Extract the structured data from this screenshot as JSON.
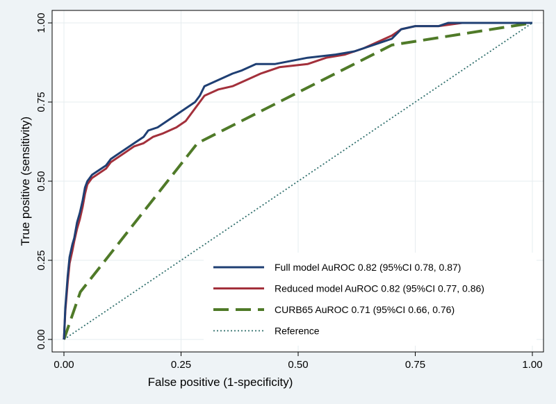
{
  "chart_data": {
    "type": "line",
    "title": "",
    "xlabel": "False positive (1-specificity)",
    "ylabel": "True positive (sensitivity)",
    "xlim": [
      0,
      1
    ],
    "ylim": [
      0,
      1
    ],
    "xticks": [
      "0.00",
      "0.25",
      "0.50",
      "0.75",
      "1.00"
    ],
    "yticks": [
      "0.00",
      "0.25",
      "0.50",
      "0.75",
      "1.00"
    ],
    "grid": true,
    "legend_position": "bottom-right",
    "series": [
      {
        "name": "Full model AuROC 0.82  (95%CI 0.78, 0.87)",
        "color": "#1f3f73",
        "style": "solid",
        "x": [
          0,
          0.003,
          0.008,
          0.012,
          0.018,
          0.022,
          0.028,
          0.034,
          0.04,
          0.045,
          0.05,
          0.06,
          0.07,
          0.09,
          0.1,
          0.11,
          0.13,
          0.15,
          0.17,
          0.18,
          0.2,
          0.22,
          0.24,
          0.26,
          0.28,
          0.29,
          0.3,
          0.33,
          0.36,
          0.38,
          0.41,
          0.45,
          0.52,
          0.58,
          0.62,
          0.66,
          0.7,
          0.72,
          0.75,
          0.8,
          0.82,
          1.0
        ],
        "y": [
          0,
          0.1,
          0.2,
          0.26,
          0.3,
          0.32,
          0.37,
          0.4,
          0.44,
          0.48,
          0.5,
          0.52,
          0.53,
          0.55,
          0.57,
          0.58,
          0.6,
          0.62,
          0.64,
          0.66,
          0.67,
          0.69,
          0.71,
          0.73,
          0.75,
          0.77,
          0.8,
          0.82,
          0.84,
          0.85,
          0.87,
          0.87,
          0.89,
          0.9,
          0.91,
          0.93,
          0.95,
          0.98,
          0.99,
          0.99,
          1.0,
          1.0
        ]
      },
      {
        "name": "Reduced model AuROC 0.82  (95%CI 0.77, 0.86)",
        "color": "#a3303b",
        "style": "solid",
        "x": [
          0,
          0.003,
          0.008,
          0.012,
          0.018,
          0.022,
          0.028,
          0.034,
          0.04,
          0.045,
          0.05,
          0.06,
          0.07,
          0.09,
          0.1,
          0.11,
          0.13,
          0.15,
          0.17,
          0.19,
          0.21,
          0.24,
          0.26,
          0.28,
          0.3,
          0.33,
          0.36,
          0.39,
          0.42,
          0.46,
          0.52,
          0.56,
          0.6,
          0.64,
          0.67,
          0.7,
          0.72,
          0.75,
          0.8,
          0.85,
          1.0
        ],
        "y": [
          0,
          0.09,
          0.18,
          0.24,
          0.28,
          0.31,
          0.35,
          0.38,
          0.42,
          0.46,
          0.49,
          0.51,
          0.52,
          0.54,
          0.56,
          0.57,
          0.59,
          0.61,
          0.62,
          0.64,
          0.65,
          0.67,
          0.69,
          0.73,
          0.77,
          0.79,
          0.8,
          0.82,
          0.84,
          0.86,
          0.87,
          0.89,
          0.9,
          0.92,
          0.94,
          0.96,
          0.98,
          0.99,
          0.99,
          1.0,
          1.0
        ]
      },
      {
        "name": "CURB65 AuROC 0.71 (95%CI 0.66, 0.76)",
        "color": "#4f7a28",
        "style": "dashed",
        "x": [
          0,
          0.035,
          0.285,
          0.7,
          1.0
        ],
        "y": [
          0,
          0.15,
          0.62,
          0.93,
          1.0
        ]
      },
      {
        "name": "Reference",
        "color": "#2e6e6b",
        "style": "dotted",
        "x": [
          0,
          1
        ],
        "y": [
          0,
          1
        ]
      }
    ]
  }
}
